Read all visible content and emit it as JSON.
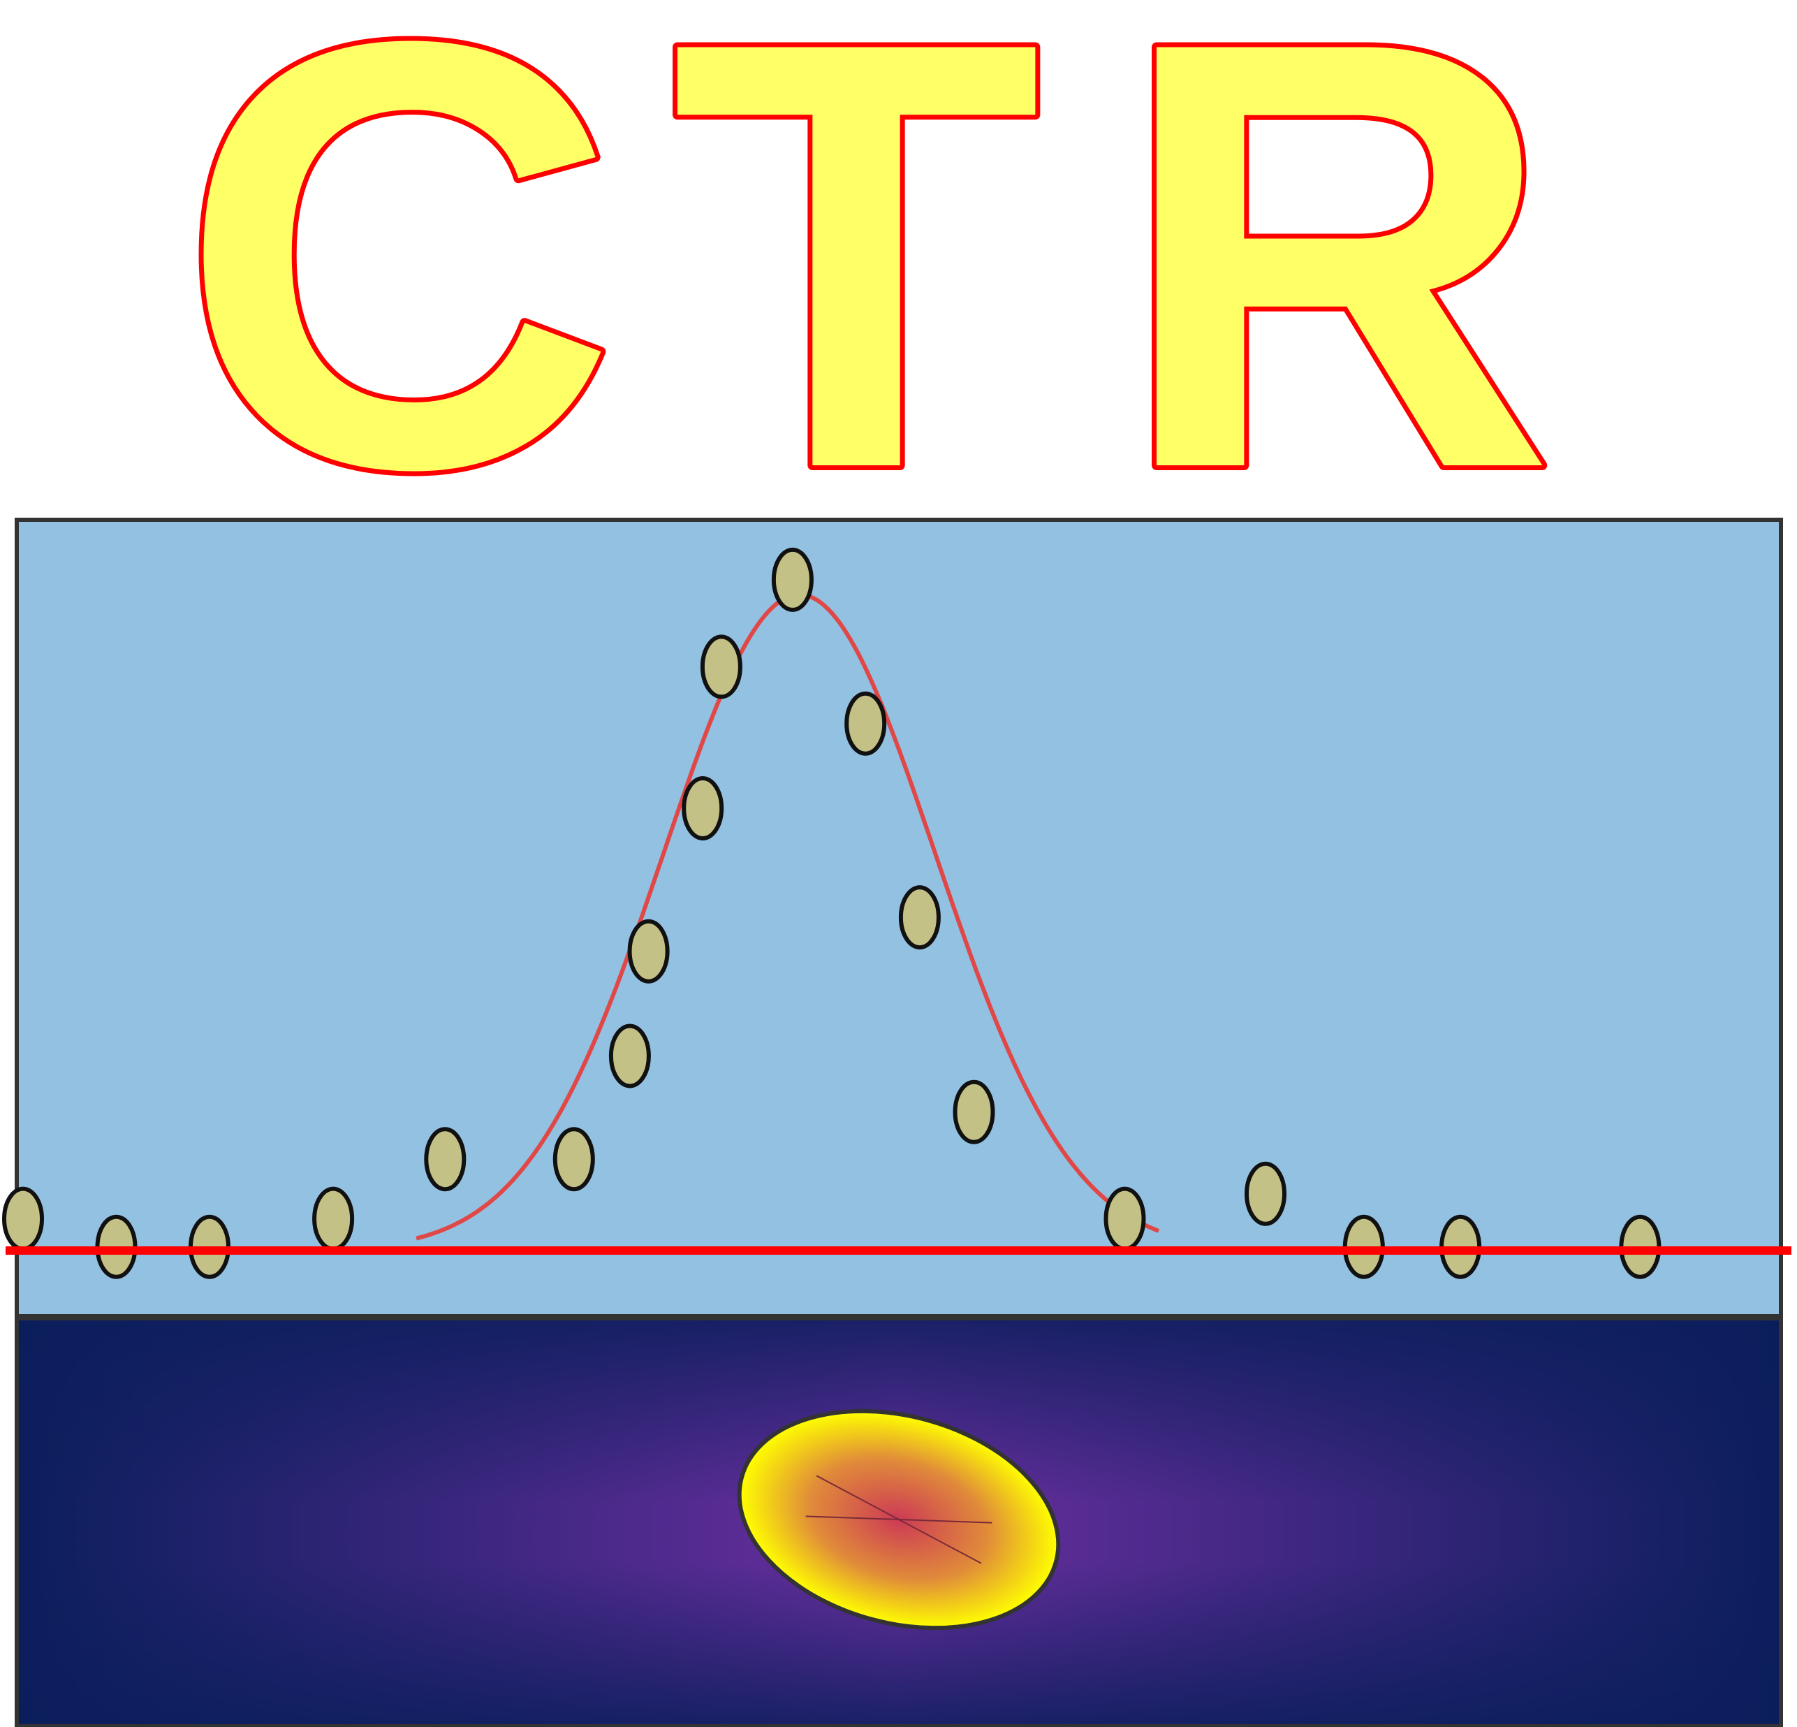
{
  "title": {
    "letters": [
      "C",
      "T",
      "R"
    ],
    "fill_color": "#ffff66",
    "stroke_color": "#ff0000"
  },
  "colors": {
    "plot_background": "#93c1e2",
    "frame": "#333333",
    "baseline": "#ff0000",
    "fit_curve": "#e04848",
    "data_point_fill": "#c4c186",
    "data_point_stroke": "#111111",
    "detector_dark": "#0b1e5c",
    "detector_glow": "#6a2fa0",
    "spot_outer": "#ffff00",
    "spot_center": "#cc3a55"
  },
  "chart_data": {
    "type": "scatter",
    "series": [
      {
        "kind": "points",
        "x": [
          0,
          0.055,
          0.11,
          0.183,
          0.249,
          0.325,
          0.358,
          0.369,
          0.401,
          0.412,
          0.454,
          0.497,
          0.529,
          0.561,
          0.65,
          0.733,
          0.791,
          0.848,
          0.954
        ],
        "y": [
          0.043,
          0.005,
          0.005,
          0.043,
          0.124,
          0.124,
          0.264,
          0.406,
          0.6,
          0.792,
          0.91,
          0.715,
          0.452,
          0.188,
          0.043,
          0.077,
          0.005,
          0.005,
          0.005
        ]
      },
      {
        "kind": "fit",
        "shape": "gaussian",
        "center": 0.458,
        "amplitude": 0.89,
        "sigma": 0.08,
        "x_range": [
          0.232,
          0.67
        ]
      },
      {
        "kind": "baseline",
        "y": 0.0
      }
    ]
  },
  "detector": {
    "spot_shape": "ellipse",
    "spot_rotation_deg": 15
  }
}
